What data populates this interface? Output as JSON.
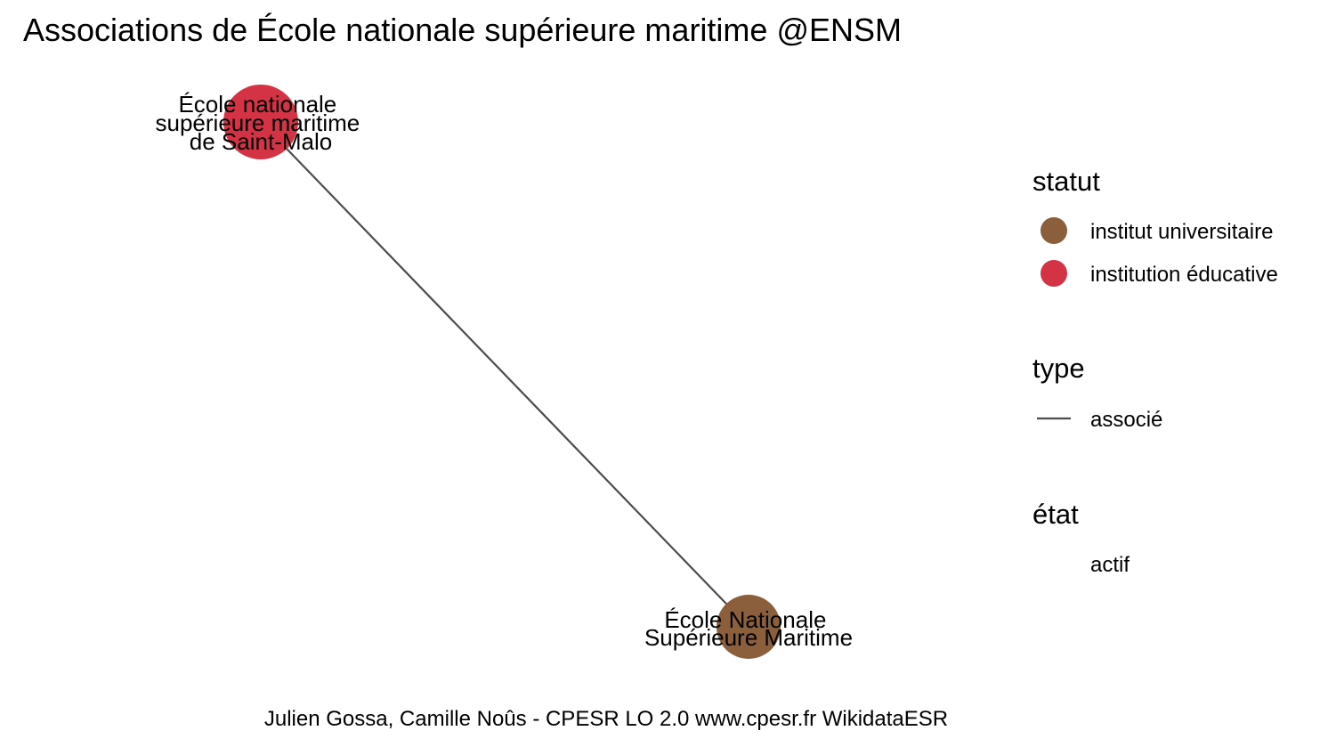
{
  "title": "Associations de École nationale supérieure maritime @ENSM",
  "caption": "Julien Gossa, Camille Noûs - CPESR LO 2.0 www.cpesr.fr WikidataESR",
  "colors": {
    "institut_universitaire": "#8b5e3c",
    "institution_educative": "#d43345",
    "edge": "#4d4d4d"
  },
  "nodes": [
    {
      "id": "ensm-saint-malo",
      "label_lines": [
        "École nationale",
        "supérieure maritime",
        "de Saint-Malo"
      ],
      "statut": "institution éducative"
    },
    {
      "id": "ensm",
      "label_lines": [
        "École Nationale",
        "Supérieure Maritime"
      ],
      "statut": "institut universitaire"
    }
  ],
  "edges": [
    {
      "from": "ensm-saint-malo",
      "to": "ensm",
      "type": "associé",
      "etat": "actif"
    }
  ],
  "legend": {
    "statut": {
      "title": "statut",
      "items": [
        "institut universitaire",
        "institution éducative"
      ]
    },
    "type": {
      "title": "type",
      "items": [
        "associé"
      ]
    },
    "etat": {
      "title": "état",
      "items": [
        "actif"
      ]
    }
  }
}
